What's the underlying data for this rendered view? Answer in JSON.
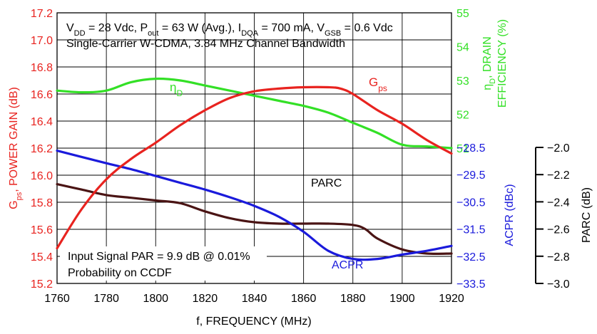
{
  "chart_data": {
    "type": "line",
    "xlabel": "f, FREQUENCY (MHz)",
    "x_ticks": [
      "1760",
      "1780",
      "1800",
      "1820",
      "1840",
      "1860",
      "1880",
      "1900",
      "1920"
    ],
    "xlim": [
      1760,
      1920
    ],
    "conditions_line1": {
      "p1": "V",
      "s1": "DD",
      "p2": " = 28 Vdc, P",
      "s2": "out",
      "p3": " = 63 W (Avg.), I",
      "s3": "DQA",
      "p4": " = 700 mA, V",
      "s4": "GSB",
      "p5": " = 0.6 Vdc"
    },
    "conditions_line2": "Single-Carrier W-CDMA, 3.84 MHz Channel Bandwidth",
    "input_note_line1": "Input Signal PAR = 9.9 dB @ 0.01%",
    "input_note_line2": "Probability on CCDF",
    "axes": {
      "gain": {
        "label_main": "G",
        "label_sub": "ps",
        "label_rest": ", POWER GAIN (dB)",
        "ticks": [
          "15.2",
          "15.4",
          "15.6",
          "15.8",
          "16.0",
          "16.2",
          "16.4",
          "16.6",
          "16.8",
          "17.0",
          "17.2"
        ],
        "range": [
          15.2,
          17.2
        ],
        "color": "#e8231f"
      },
      "efficiency": {
        "label_main": "η",
        "label_sub": "D",
        "label_rest": ", DRAIN",
        "label_line2": "EFFICIENCY (%)",
        "ticks": [
          "51",
          "52",
          "53",
          "54",
          "55"
        ],
        "range": [
          47,
          55
        ],
        "color": "#33e026"
      },
      "acpr": {
        "label": "ACPR (dBc)",
        "ticks": [
          "−28.5",
          "−29.5",
          "−30.5",
          "−31.5",
          "−32.5",
          "−33.5"
        ],
        "range": [
          -33.5,
          -28.5
        ],
        "color": "#1a1adb"
      },
      "parc": {
        "label": "PARC (dB)",
        "ticks": [
          "−2.0",
          "−2.2",
          "−2.4",
          "−2.6",
          "−2.8",
          "−3.0"
        ],
        "range": [
          -3.0,
          -2.0
        ],
        "color": "#000000"
      }
    },
    "series": [
      {
        "name": "Gps",
        "label_main": "G",
        "label_sub": "ps",
        "axis": "gain",
        "color": "#e8231f",
        "x": [
          1760,
          1770,
          1780,
          1790,
          1800,
          1810,
          1820,
          1830,
          1840,
          1850,
          1860,
          1870,
          1875,
          1880,
          1890,
          1900,
          1910,
          1920
        ],
        "y": [
          15.46,
          15.75,
          15.97,
          16.12,
          16.24,
          16.37,
          16.48,
          16.57,
          16.62,
          16.64,
          16.65,
          16.65,
          16.64,
          16.6,
          16.48,
          16.38,
          16.26,
          16.16
        ]
      },
      {
        "name": "ηD",
        "label_main": "η",
        "label_sub": "D",
        "axis": "efficiency",
        "color": "#33e026",
        "x": [
          1760,
          1770,
          1780,
          1790,
          1800,
          1810,
          1820,
          1830,
          1840,
          1850,
          1860,
          1870,
          1880,
          1890,
          1900,
          1910,
          1920
        ],
        "y": [
          52.7,
          52.65,
          52.7,
          52.95,
          53.05,
          53.0,
          52.85,
          52.7,
          52.55,
          52.4,
          52.25,
          52.05,
          51.75,
          51.45,
          51.1,
          51.05,
          51.0
        ]
      },
      {
        "name": "PARC",
        "label_main": "PARC",
        "axis": "parc",
        "color": "#4a1414",
        "x": [
          1760,
          1770,
          1780,
          1790,
          1800,
          1810,
          1820,
          1830,
          1840,
          1850,
          1860,
          1870,
          1880,
          1885,
          1890,
          1900,
          1910,
          1920
        ],
        "y": [
          -2.27,
          -2.31,
          -2.35,
          -2.37,
          -2.39,
          -2.41,
          -2.47,
          -2.52,
          -2.55,
          -2.56,
          -2.56,
          -2.56,
          -2.57,
          -2.6,
          -2.67,
          -2.75,
          -2.78,
          -2.78
        ]
      },
      {
        "name": "ACPR",
        "label_main": "ACPR",
        "axis": "acpr",
        "color": "#1a1adb",
        "x": [
          1760,
          1770,
          1780,
          1790,
          1800,
          1810,
          1820,
          1830,
          1840,
          1850,
          1860,
          1870,
          1880,
          1890,
          1900,
          1910,
          1920
        ],
        "y": [
          -28.62,
          -28.85,
          -29.08,
          -29.3,
          -29.55,
          -29.8,
          -30.05,
          -30.33,
          -30.65,
          -31.05,
          -31.6,
          -32.3,
          -32.6,
          -32.6,
          -32.44,
          -32.3,
          -32.12
        ]
      }
    ],
    "grid": true,
    "legend": "none"
  }
}
